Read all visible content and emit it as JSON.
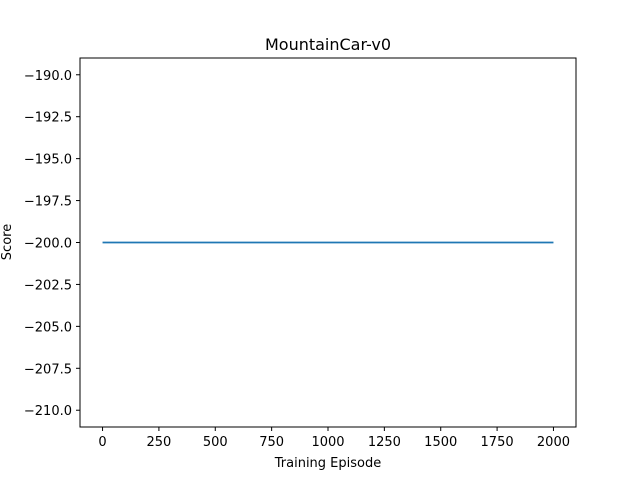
{
  "chart_data": {
    "type": "line",
    "title": "MountainCar-v0",
    "xlabel": "Training Episode",
    "ylabel": "Score",
    "xlim": [
      -100,
      2100
    ],
    "ylim": [
      -211,
      -189
    ],
    "xticks": [
      0,
      250,
      500,
      750,
      1000,
      1250,
      1500,
      1750,
      2000
    ],
    "yticks": [
      -190.0,
      -192.5,
      -195.0,
      -197.5,
      -200.0,
      -202.5,
      -205.0,
      -207.5,
      -210.0
    ],
    "xtick_labels": [
      "0",
      "250",
      "500",
      "750",
      "1000",
      "1250",
      "1500",
      "1750",
      "2000"
    ],
    "ytick_labels": [
      "−190.0",
      "−192.5",
      "−195.0",
      "−197.5",
      "−200.0",
      "−202.5",
      "−205.0",
      "−207.5",
      "−210.0"
    ],
    "grid": false,
    "series": [
      {
        "color": "#1f77b4",
        "x": [
          0,
          2000
        ],
        "y": [
          -200,
          -200
        ]
      }
    ]
  }
}
